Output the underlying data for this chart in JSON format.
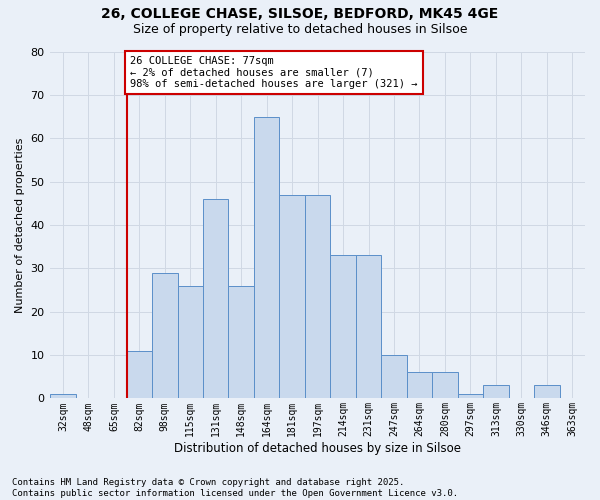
{
  "title_line1": "26, COLLEGE CHASE, SILSOE, BEDFORD, MK45 4GE",
  "title_line2": "Size of property relative to detached houses in Silsoe",
  "xlabel": "Distribution of detached houses by size in Silsoe",
  "ylabel": "Number of detached properties",
  "categories": [
    "32sqm",
    "48sqm",
    "65sqm",
    "82sqm",
    "98sqm",
    "115sqm",
    "131sqm",
    "148sqm",
    "164sqm",
    "181sqm",
    "197sqm",
    "214sqm",
    "231sqm",
    "247sqm",
    "264sqm",
    "280sqm",
    "297sqm",
    "313sqm",
    "330sqm",
    "346sqm",
    "363sqm"
  ],
  "values": [
    1,
    0,
    0,
    11,
    29,
    26,
    46,
    26,
    65,
    47,
    47,
    33,
    33,
    10,
    6,
    6,
    1,
    3,
    0,
    3,
    0
  ],
  "bar_color": "#c9d9ed",
  "bar_edge_color": "#5b8fc9",
  "grid_color": "#d0d8e4",
  "background_color": "#eaf0f8",
  "vline_color": "#cc0000",
  "vline_pos": 2.5,
  "annotation_text": "26 COLLEGE CHASE: 77sqm\n← 2% of detached houses are smaller (7)\n98% of semi-detached houses are larger (321) →",
  "annotation_box_facecolor": "#ffffff",
  "annotation_box_edgecolor": "#cc0000",
  "footer_text": "Contains HM Land Registry data © Crown copyright and database right 2025.\nContains public sector information licensed under the Open Government Licence v3.0.",
  "ylim": [
    0,
    80
  ],
  "yticks": [
    0,
    10,
    20,
    30,
    40,
    50,
    60,
    70,
    80
  ],
  "figsize": [
    6.0,
    5.0
  ],
  "dpi": 100
}
